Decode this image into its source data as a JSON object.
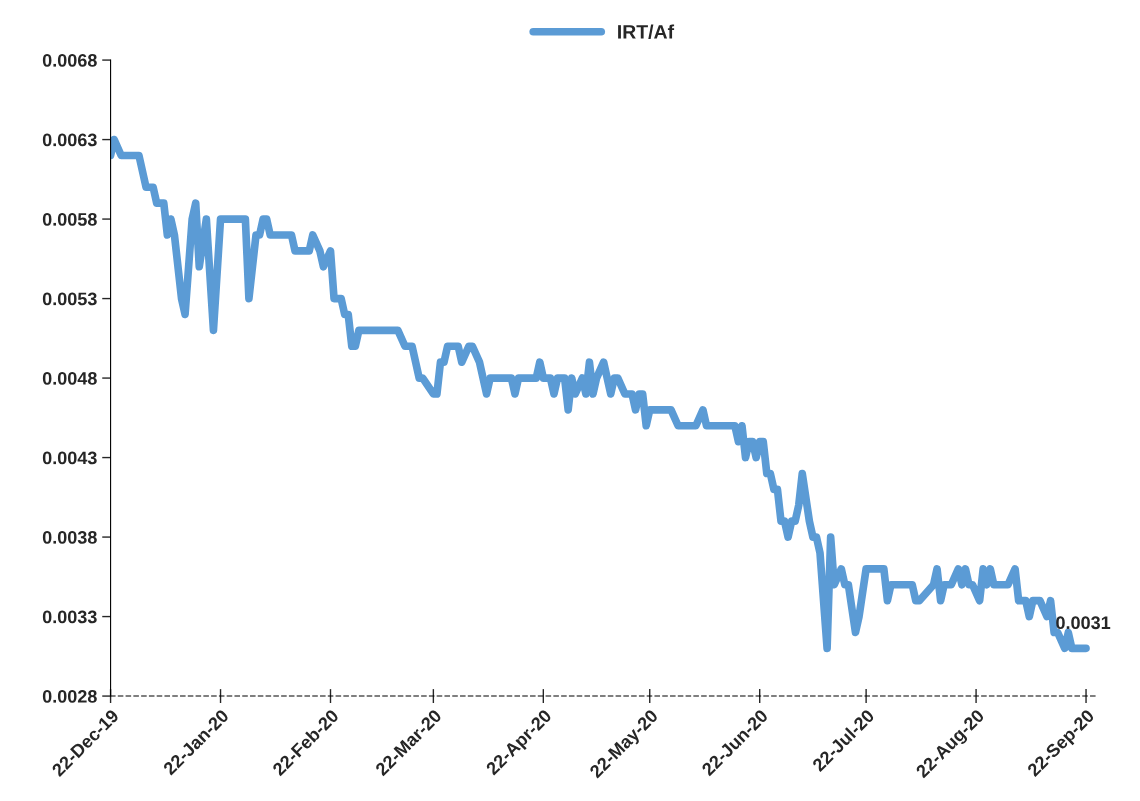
{
  "chart_data": {
    "type": "line",
    "x": [
      "2019-12-22",
      "2019-12-23",
      "2019-12-25",
      "2019-12-30",
      "2020-01-01",
      "2020-01-03",
      "2020-01-04",
      "2020-01-06",
      "2020-01-07",
      "2020-01-08",
      "2020-01-09",
      "2020-01-11",
      "2020-01-12",
      "2020-01-14",
      "2020-01-15",
      "2020-01-16",
      "2020-01-18",
      "2020-01-20",
      "2020-01-22",
      "2020-01-29",
      "2020-01-30",
      "2020-02-01",
      "2020-02-02",
      "2020-02-03",
      "2020-02-04",
      "2020-02-05",
      "2020-02-11",
      "2020-02-12",
      "2020-02-16",
      "2020-02-17",
      "2020-02-19",
      "2020-02-20",
      "2020-02-22",
      "2020-02-23",
      "2020-02-25",
      "2020-02-26",
      "2020-02-27",
      "2020-02-28",
      "2020-02-29",
      "2020-03-01",
      "2020-03-12",
      "2020-03-14",
      "2020-03-16",
      "2020-03-18",
      "2020-03-19",
      "2020-03-22",
      "2020-03-23",
      "2020-03-24",
      "2020-03-25",
      "2020-03-26",
      "2020-03-29",
      "2020-03-30",
      "2020-04-01",
      "2020-04-02",
      "2020-04-04",
      "2020-04-06",
      "2020-04-07",
      "2020-04-13",
      "2020-04-14",
      "2020-04-15",
      "2020-04-20",
      "2020-04-21",
      "2020-04-22",
      "2020-04-24",
      "2020-04-25",
      "2020-04-26",
      "2020-04-28",
      "2020-04-29",
      "2020-04-30",
      "2020-05-01",
      "2020-05-03",
      "2020-05-04",
      "2020-05-05",
      "2020-05-06",
      "2020-05-07",
      "2020-05-09",
      "2020-05-11",
      "2020-05-12",
      "2020-05-13",
      "2020-05-15",
      "2020-05-17",
      "2020-05-18",
      "2020-05-19",
      "2020-05-20",
      "2020-05-21",
      "2020-05-22",
      "2020-05-28",
      "2020-05-30",
      "2020-06-04",
      "2020-06-06",
      "2020-06-07",
      "2020-06-15",
      "2020-06-16",
      "2020-06-17",
      "2020-06-18",
      "2020-06-19",
      "2020-06-20",
      "2020-06-21",
      "2020-06-22",
      "2020-06-23",
      "2020-06-24",
      "2020-06-25",
      "2020-06-26",
      "2020-06-27",
      "2020-06-28",
      "2020-06-29",
      "2020-06-30",
      "2020-07-01",
      "2020-07-02",
      "2020-07-03",
      "2020-07-04",
      "2020-07-06",
      "2020-07-07",
      "2020-07-08",
      "2020-07-09",
      "2020-07-11",
      "2020-07-12",
      "2020-07-13",
      "2020-07-15",
      "2020-07-16",
      "2020-07-17",
      "2020-07-19",
      "2020-07-20",
      "2020-07-22",
      "2020-07-27",
      "2020-07-28",
      "2020-07-29",
      "2020-08-04",
      "2020-08-05",
      "2020-08-06",
      "2020-08-10",
      "2020-08-11",
      "2020-08-12",
      "2020-08-13",
      "2020-08-15",
      "2020-08-17",
      "2020-08-18",
      "2020-08-19",
      "2020-08-20",
      "2020-08-21",
      "2020-08-23",
      "2020-08-24",
      "2020-08-25",
      "2020-08-26",
      "2020-08-27",
      "2020-08-31",
      "2020-09-02",
      "2020-09-03",
      "2020-09-05",
      "2020-09-06",
      "2020-09-07",
      "2020-09-09",
      "2020-09-11",
      "2020-09-12",
      "2020-09-13",
      "2020-09-14",
      "2020-09-16",
      "2020-09-17",
      "2020-09-18",
      "2020-09-22"
    ],
    "series": [
      {
        "name": "IRT/Af",
        "color": "#5b9bd5",
        "values": [
          0.0062,
          0.0063,
          0.0062,
          0.0062,
          0.006,
          0.006,
          0.0059,
          0.0059,
          0.0057,
          0.0058,
          0.0057,
          0.0053,
          0.0052,
          0.0058,
          0.0059,
          0.0055,
          0.0058,
          0.0051,
          0.0058,
          0.0058,
          0.0053,
          0.0057,
          0.0057,
          0.0058,
          0.0058,
          0.0057,
          0.0057,
          0.0056,
          0.0056,
          0.0057,
          0.0056,
          0.0055,
          0.0056,
          0.0053,
          0.0053,
          0.0052,
          0.0052,
          0.005,
          0.005,
          0.0051,
          0.0051,
          0.005,
          0.005,
          0.0048,
          0.0048,
          0.0047,
          0.0047,
          0.0049,
          0.0049,
          0.005,
          0.005,
          0.0049,
          0.005,
          0.005,
          0.0049,
          0.0047,
          0.0048,
          0.0048,
          0.0047,
          0.0048,
          0.0048,
          0.0049,
          0.0048,
          0.0048,
          0.0047,
          0.0048,
          0.0048,
          0.0046,
          0.0048,
          0.0047,
          0.0048,
          0.0047,
          0.0049,
          0.0047,
          0.0048,
          0.0049,
          0.0047,
          0.0048,
          0.0048,
          0.0047,
          0.0047,
          0.0046,
          0.0047,
          0.0047,
          0.0045,
          0.0046,
          0.0046,
          0.0045,
          0.0045,
          0.0046,
          0.0045,
          0.0045,
          0.0044,
          0.0045,
          0.0043,
          0.0044,
          0.0044,
          0.0043,
          0.0044,
          0.0044,
          0.0042,
          0.0042,
          0.0041,
          0.0041,
          0.0039,
          0.0039,
          0.0038,
          0.0039,
          0.0039,
          0.004,
          0.0042,
          0.0039,
          0.0038,
          0.0038,
          0.0037,
          0.0031,
          0.0038,
          0.0035,
          0.0036,
          0.0035,
          0.0035,
          0.0032,
          0.0033,
          0.0036,
          0.0036,
          0.0034,
          0.0035,
          0.0035,
          0.0034,
          0.0034,
          0.0035,
          0.0036,
          0.0034,
          0.0035,
          0.0035,
          0.0036,
          0.0035,
          0.0036,
          0.0035,
          0.0035,
          0.0034,
          0.0036,
          0.0035,
          0.0036,
          0.0035,
          0.0035,
          0.0036,
          0.0034,
          0.0034,
          0.0033,
          0.0034,
          0.0034,
          0.0033,
          0.0034,
          0.0032,
          0.0032,
          0.0031,
          0.0032,
          0.0031,
          0.0031
        ]
      }
    ],
    "annotations": [
      {
        "text": "0.0031",
        "x": "2020-09-22",
        "y": 0.0031
      }
    ],
    "xlim": [
      "2019-12-22",
      "2020-09-25"
    ],
    "xticks": [
      {
        "value": "2019-12-22",
        "label": "22-Dec-19"
      },
      {
        "value": "2020-01-22",
        "label": "22-Jan-20"
      },
      {
        "value": "2020-02-22",
        "label": "22-Feb-20"
      },
      {
        "value": "2020-03-22",
        "label": "22-Mar-20"
      },
      {
        "value": "2020-04-22",
        "label": "22-Apr-20"
      },
      {
        "value": "2020-05-22",
        "label": "22-May-20"
      },
      {
        "value": "2020-06-22",
        "label": "22-Jun-20"
      },
      {
        "value": "2020-07-22",
        "label": "22-Jul-20"
      },
      {
        "value": "2020-08-22",
        "label": "22-Aug-20"
      },
      {
        "value": "2020-09-22",
        "label": "22-Sep-20"
      }
    ],
    "ylim": [
      0.0028,
      0.0068
    ],
    "yticks": [
      0.0028,
      0.0033,
      0.0038,
      0.0043,
      0.0048,
      0.0053,
      0.0058,
      0.0063,
      0.0068
    ],
    "legend": "top",
    "grid": false,
    "marker": "none",
    "line_style": "solid"
  }
}
